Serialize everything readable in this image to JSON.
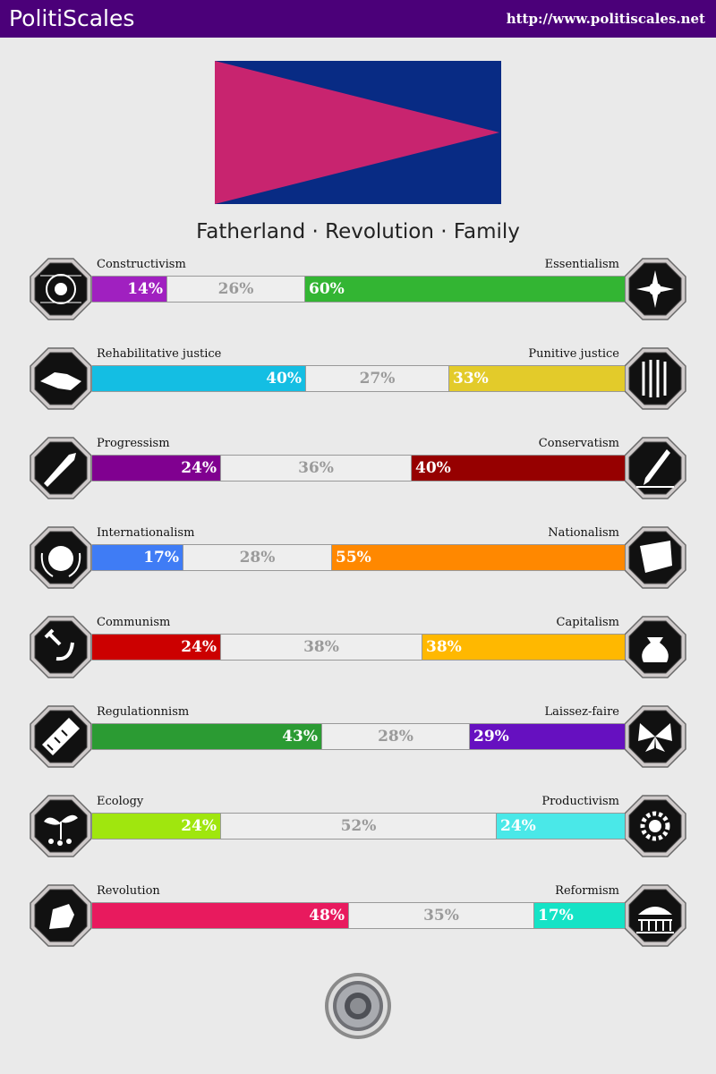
{
  "header": {
    "brand": "PolitiScales",
    "url": "http://www.politiscales.net"
  },
  "flag": {
    "background": "#082b84",
    "triangle": "#c8246f"
  },
  "slogan": "Fatherland · Revolution · Family",
  "axes": [
    {
      "left_label": "Constructivism",
      "right_label": "Essentialism",
      "left_pct": "14%",
      "mid_pct": "26%",
      "right_pct": "60%",
      "left_value": 14,
      "mid_value": 26,
      "right_value": 60,
      "left_color": "#a020c0",
      "right_color": "#33b533",
      "left_icon": "eye-icon",
      "right_icon": "flower-icon"
    },
    {
      "left_label": "Rehabilitative justice",
      "right_label": "Punitive justice",
      "left_pct": "40%",
      "mid_pct": "27%",
      "right_pct": "33%",
      "left_value": 40,
      "mid_value": 27,
      "right_value": 33,
      "left_color": "#14bee3",
      "right_color": "#e3cb2a",
      "left_icon": "handshake-icon",
      "right_icon": "prison-bars-icon"
    },
    {
      "left_label": "Progressism",
      "right_label": "Conservatism",
      "left_pct": "24%",
      "mid_pct": "36%",
      "right_pct": "40%",
      "left_value": 24,
      "mid_value": 36,
      "right_value": 40,
      "left_color": "#800090",
      "right_color": "#960000",
      "left_icon": "rocket-icon",
      "right_icon": "quill-icon"
    },
    {
      "left_label": "Internationalism",
      "right_label": "Nationalism",
      "left_pct": "17%",
      "mid_pct": "28%",
      "right_pct": "55%",
      "left_value": 17,
      "mid_value": 28,
      "right_value": 55,
      "left_color": "#3f7cf5",
      "right_color": "#ff8800",
      "left_icon": "globe-icon",
      "right_icon": "flag-icon"
    },
    {
      "left_label": "Communism",
      "right_label": "Capitalism",
      "left_pct": "24%",
      "mid_pct": "38%",
      "right_pct": "38%",
      "left_value": 24,
      "mid_value": 38,
      "right_value": 38,
      "left_color": "#cc0000",
      "right_color": "#ffb800",
      "left_icon": "hammer-sickle-icon",
      "right_icon": "money-bag-icon"
    },
    {
      "left_label": "Regulationnism",
      "right_label": "Laissez-faire",
      "left_pct": "43%",
      "mid_pct": "28%",
      "right_pct": "29%",
      "left_value": 43,
      "mid_value": 28,
      "right_value": 29,
      "left_color": "#2b9b33",
      "right_color": "#6610c0",
      "left_icon": "ruler-icon",
      "right_icon": "butterfly-icon"
    },
    {
      "left_label": "Ecology",
      "right_label": "Productivism",
      "left_pct": "24%",
      "mid_pct": "52%",
      "right_pct": "24%",
      "left_value": 24,
      "mid_value": 52,
      "right_value": 24,
      "left_color": "#a0e60e",
      "right_color": "#4ae8e8",
      "left_icon": "sprout-icon",
      "right_icon": "gear-icon"
    },
    {
      "left_label": "Revolution",
      "right_label": "Reformism",
      "left_pct": "48%",
      "mid_pct": "35%",
      "right_pct": "17%",
      "left_value": 48,
      "mid_value": 35,
      "right_value": 17,
      "left_color": "#e81a5e",
      "right_color": "#15e3c6",
      "left_icon": "fist-icon",
      "right_icon": "parliament-icon"
    }
  ]
}
